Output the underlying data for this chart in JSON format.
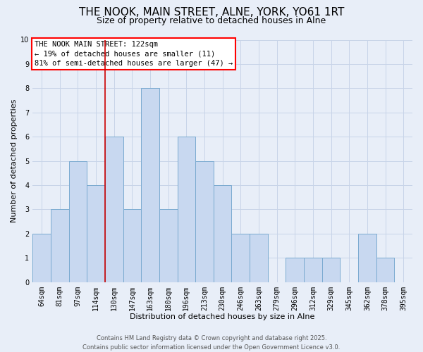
{
  "title": "THE NOOK, MAIN STREET, ALNE, YORK, YO61 1RT",
  "subtitle": "Size of property relative to detached houses in Alne",
  "xlabel": "Distribution of detached houses by size in Alne",
  "ylabel": "Number of detached properties",
  "bar_labels": [
    "64sqm",
    "81sqm",
    "97sqm",
    "114sqm",
    "130sqm",
    "147sqm",
    "163sqm",
    "180sqm",
    "196sqm",
    "213sqm",
    "230sqm",
    "246sqm",
    "263sqm",
    "279sqm",
    "296sqm",
    "312sqm",
    "329sqm",
    "345sqm",
    "362sqm",
    "378sqm",
    "395sqm"
  ],
  "bar_values": [
    2,
    3,
    5,
    4,
    6,
    3,
    8,
    3,
    6,
    5,
    4,
    2,
    2,
    0,
    1,
    1,
    1,
    0,
    2,
    1,
    0
  ],
  "bar_color": "#c8d8f0",
  "bar_edge_color": "#7aaad0",
  "grid_color": "#c8d4e8",
  "background_color": "#e8eef8",
  "annotation_box_text": "THE NOOK MAIN STREET: 122sqm\n← 19% of detached houses are smaller (11)\n81% of semi-detached houses are larger (47) →",
  "annotation_box_color": "white",
  "annotation_box_edge_color": "red",
  "vline_x_index": 3.5,
  "vline_color": "#cc0000",
  "ylim": [
    0,
    10
  ],
  "yticks": [
    0,
    1,
    2,
    3,
    4,
    5,
    6,
    7,
    8,
    9,
    10
  ],
  "footer_line1": "Contains HM Land Registry data © Crown copyright and database right 2025.",
  "footer_line2": "Contains public sector information licensed under the Open Government Licence v3.0.",
  "title_fontsize": 11,
  "subtitle_fontsize": 9,
  "label_fontsize": 8,
  "tick_fontsize": 7,
  "footer_fontsize": 6,
  "annot_fontsize": 7.5
}
